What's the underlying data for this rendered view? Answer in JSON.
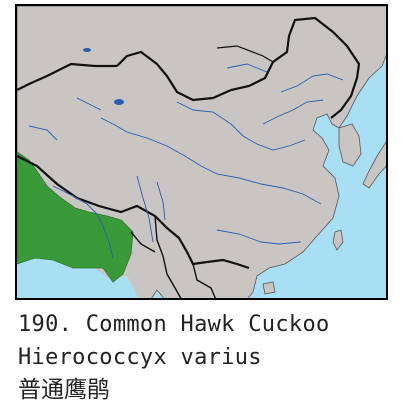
{
  "map": {
    "land_color": "#c9c5c3",
    "sea_color": "#a9dff5",
    "range_color": "#3a9a3a",
    "river_color": "#2a5db0",
    "border_color": "#111111"
  },
  "caption": {
    "english": "190. Common Hawk Cuckoo",
    "scientific": "Hierococcyx varius",
    "chinese": "普通鹰鹃"
  }
}
